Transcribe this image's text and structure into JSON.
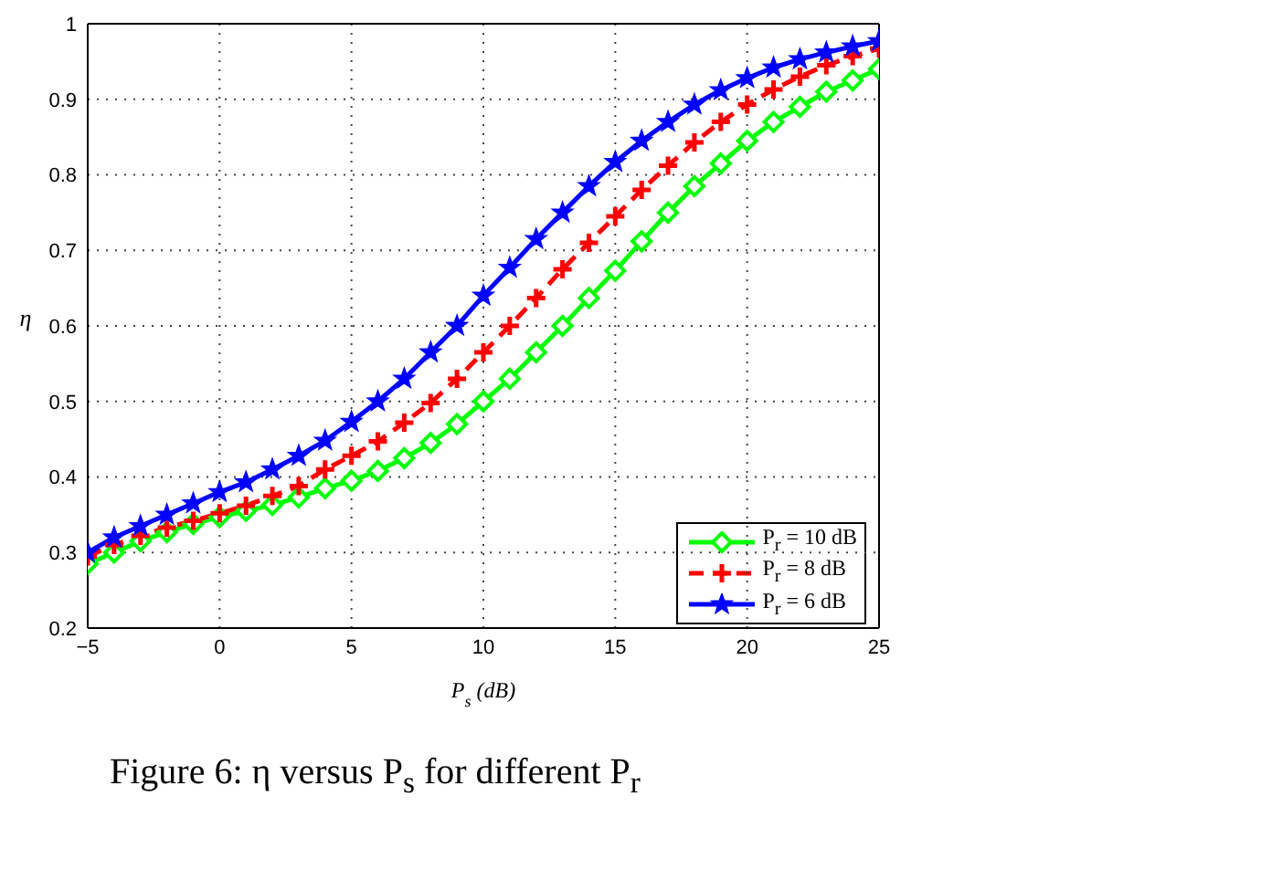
{
  "chart_data": {
    "type": "line",
    "xlabel": "P$_{s}$ (dB)",
    "ylabel": "η",
    "x": [
      -5,
      -4,
      -3,
      -2,
      -1,
      0,
      1,
      2,
      3,
      4,
      5,
      6,
      7,
      8,
      9,
      10,
      11,
      12,
      13,
      14,
      15,
      16,
      17,
      18,
      19,
      20,
      21,
      22,
      23,
      24,
      25
    ],
    "series": [
      {
        "name": "P$_{r}$ = 10 dB",
        "color": "#00ff00",
        "marker": "diamond",
        "line_style": "solid",
        "values": [
          0.285,
          0.3,
          0.315,
          0.327,
          0.338,
          0.347,
          0.355,
          0.363,
          0.373,
          0.385,
          0.395,
          0.408,
          0.425,
          0.445,
          0.47,
          0.5,
          0.53,
          0.565,
          0.6,
          0.637,
          0.673,
          0.712,
          0.75,
          0.785,
          0.815,
          0.845,
          0.87,
          0.89,
          0.91,
          0.925,
          0.94
        ]
      },
      {
        "name": "P$_{r}$ = 8 dB",
        "color": "#ff0000",
        "marker": "cross",
        "line_style": "dashed",
        "values": [
          0.295,
          0.31,
          0.322,
          0.333,
          0.342,
          0.352,
          0.362,
          0.375,
          0.388,
          0.41,
          0.428,
          0.447,
          0.472,
          0.498,
          0.53,
          0.565,
          0.6,
          0.637,
          0.675,
          0.71,
          0.745,
          0.78,
          0.812,
          0.843,
          0.87,
          0.893,
          0.913,
          0.93,
          0.945,
          0.957,
          0.967
        ]
      },
      {
        "name": "P$_{r}$ = 6 dB",
        "color": "#0000ff",
        "marker": "star",
        "line_style": "solid",
        "values": [
          0.3,
          0.32,
          0.335,
          0.35,
          0.365,
          0.38,
          0.393,
          0.41,
          0.428,
          0.448,
          0.473,
          0.5,
          0.53,
          0.565,
          0.6,
          0.64,
          0.677,
          0.715,
          0.75,
          0.785,
          0.817,
          0.845,
          0.87,
          0.893,
          0.912,
          0.928,
          0.942,
          0.953,
          0.962,
          0.97,
          0.977
        ]
      }
    ],
    "xlim": [
      -5,
      25
    ],
    "xticks": [
      {
        "value": -5,
        "label": "−5"
      },
      0,
      5,
      10,
      15,
      20,
      25
    ],
    "ylim": [
      0.2,
      1
    ],
    "yticks": [
      0.2,
      0.3,
      0.4,
      0.5,
      0.6,
      0.7,
      0.8,
      0.9,
      1
    ],
    "grid": true,
    "legend": "bottom right",
    "annotations": [
      "Figure 6: η versus P$_{s}$ for different P$_{r}$"
    ]
  }
}
